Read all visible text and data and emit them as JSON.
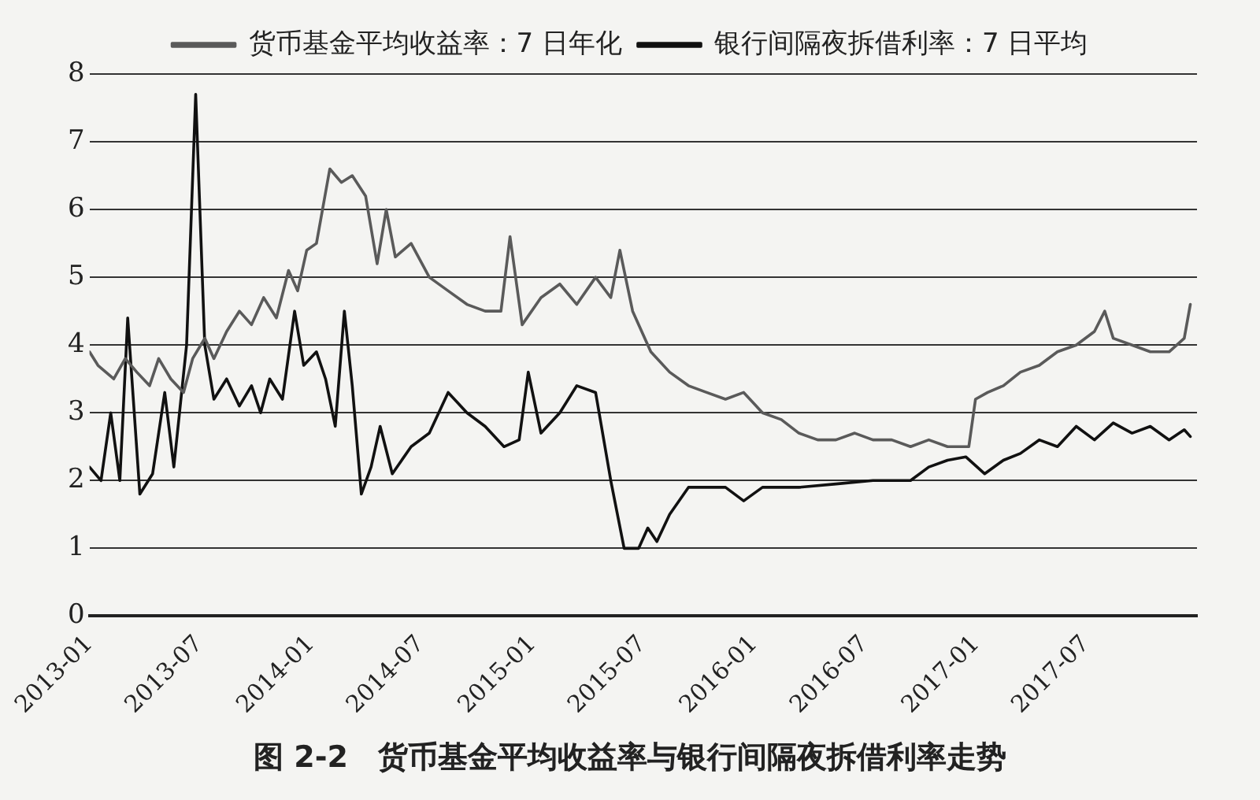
{
  "chart_data": {
    "type": "line",
    "title": "图 2-2　货币基金平均收益率与银行间隔夜拆借利率走势",
    "xlim": [
      "2013-01-01",
      "2017-12-31"
    ],
    "xticks": [
      "2013-01",
      "2013-07",
      "2014-01",
      "2014-07",
      "2015-01",
      "2015-07",
      "2016-01",
      "2016-07",
      "2017-01",
      "2017-07"
    ],
    "ylim": [
      0,
      8
    ],
    "yticks": [
      0,
      1,
      2,
      3,
      4,
      5,
      6,
      7,
      8
    ],
    "grid": "y",
    "legend": "top",
    "marker": "none",
    "line_style": "solid",
    "series": [
      {
        "name": "货币基金平均收益率：7 日年化",
        "color": "#5a5a5a",
        "x": [
          "2013-01-01",
          "2013-01-15",
          "2013-02-10",
          "2013-03-01",
          "2013-03-20",
          "2013-04-10",
          "2013-04-25",
          "2013-05-15",
          "2013-06-05",
          "2013-06-20",
          "2013-07-10",
          "2013-07-25",
          "2013-08-15",
          "2013-09-05",
          "2013-09-25",
          "2013-10-15",
          "2013-11-05",
          "2013-11-25",
          "2013-12-10",
          "2013-12-25",
          "2014-01-10",
          "2014-01-20",
          "2014-02-01",
          "2014-02-20",
          "2014-03-10",
          "2014-04-01",
          "2014-04-20",
          "2014-05-05",
          "2014-05-20",
          "2014-06-15",
          "2014-07-15",
          "2014-08-15",
          "2014-09-15",
          "2014-10-15",
          "2014-11-10",
          "2014-11-25",
          "2014-12-15",
          "2015-01-15",
          "2015-02-15",
          "2015-03-15",
          "2015-04-15",
          "2015-05-10",
          "2015-05-25",
          "2015-06-15",
          "2015-07-15",
          "2015-08-15",
          "2015-09-15",
          "2015-10-15",
          "2015-11-15",
          "2015-12-15",
          "2016-01-15",
          "2016-02-15",
          "2016-03-15",
          "2016-04-15",
          "2016-05-15",
          "2016-06-15",
          "2016-07-15",
          "2016-08-15",
          "2016-09-15",
          "2016-10-15",
          "2016-11-15",
          "2016-12-20",
          "2016-12-31",
          "2017-01-20",
          "2017-02-15",
          "2017-03-15",
          "2017-04-15",
          "2017-05-15",
          "2017-06-15",
          "2017-07-15",
          "2017-08-01",
          "2017-08-15",
          "2017-09-15",
          "2017-10-15",
          "2017-11-15",
          "2017-12-10",
          "2017-12-20"
        ],
        "values": [
          3.9,
          3.7,
          3.5,
          3.8,
          3.6,
          3.4,
          3.8,
          3.5,
          3.3,
          3.8,
          4.1,
          3.8,
          4.2,
          4.5,
          4.3,
          4.7,
          4.4,
          5.1,
          4.8,
          5.4,
          5.5,
          6.0,
          6.6,
          6.4,
          6.5,
          6.2,
          5.2,
          6.0,
          5.3,
          5.5,
          5.0,
          4.8,
          4.6,
          4.5,
          4.5,
          5.6,
          4.3,
          4.7,
          4.9,
          4.6,
          5.0,
          4.7,
          5.4,
          4.5,
          3.9,
          3.6,
          3.4,
          3.3,
          3.2,
          3.3,
          3.0,
          2.9,
          2.7,
          2.6,
          2.6,
          2.7,
          2.6,
          2.6,
          2.5,
          2.6,
          2.5,
          2.5,
          3.2,
          3.3,
          3.4,
          3.6,
          3.7,
          3.9,
          4.0,
          4.2,
          4.5,
          4.1,
          4.0,
          3.9,
          3.9,
          4.1,
          4.6
        ]
      },
      {
        "name": "银行间隔夜拆借利率：7 日平均",
        "color": "#111111",
        "x": [
          "2013-01-01",
          "2013-01-20",
          "2013-02-05",
          "2013-02-20",
          "2013-03-05",
          "2013-03-25",
          "2013-04-15",
          "2013-05-05",
          "2013-05-20",
          "2013-06-10",
          "2013-06-25",
          "2013-07-10",
          "2013-07-25",
          "2013-08-15",
          "2013-09-05",
          "2013-09-25",
          "2013-10-10",
          "2013-10-25",
          "2013-11-15",
          "2013-12-05",
          "2013-12-20",
          "2014-01-10",
          "2014-01-25",
          "2014-02-10",
          "2014-02-25",
          "2014-03-10",
          "2014-03-25",
          "2014-04-10",
          "2014-04-25",
          "2014-05-15",
          "2014-06-15",
          "2014-07-15",
          "2014-08-15",
          "2014-09-15",
          "2014-10-15",
          "2014-11-15",
          "2014-12-10",
          "2014-12-25",
          "2015-01-15",
          "2015-02-15",
          "2015-03-15",
          "2015-04-15",
          "2015-05-10",
          "2015-06-01",
          "2015-06-25",
          "2015-07-10",
          "2015-07-25",
          "2015-08-15",
          "2015-09-15",
          "2015-10-15",
          "2015-11-15",
          "2015-12-15",
          "2016-01-15",
          "2016-03-15",
          "2016-05-15",
          "2016-07-15",
          "2016-09-15",
          "2016-10-15",
          "2016-11-15",
          "2016-12-15",
          "2017-01-15",
          "2017-02-15",
          "2017-03-15",
          "2017-04-15",
          "2017-05-15",
          "2017-06-15",
          "2017-07-15",
          "2017-08-15",
          "2017-09-15",
          "2017-10-15",
          "2017-11-15",
          "2017-12-10",
          "2017-12-20"
        ],
        "values": [
          2.2,
          2.0,
          3.0,
          2.0,
          4.4,
          1.8,
          2.1,
          3.3,
          2.2,
          4.0,
          7.7,
          4.0,
          3.2,
          3.5,
          3.1,
          3.4,
          3.0,
          3.5,
          3.2,
          4.5,
          3.7,
          3.9,
          3.5,
          2.8,
          4.5,
          3.4,
          1.8,
          2.2,
          2.8,
          2.1,
          2.5,
          2.7,
          3.3,
          3.0,
          2.8,
          2.5,
          2.6,
          3.6,
          2.7,
          3.0,
          3.4,
          3.3,
          2.0,
          1.0,
          1.0,
          1.3,
          1.1,
          1.5,
          1.9,
          1.9,
          1.9,
          1.7,
          1.9,
          1.9,
          1.95,
          2.0,
          2.0,
          2.2,
          2.3,
          2.35,
          2.1,
          2.3,
          2.4,
          2.6,
          2.5,
          2.8,
          2.6,
          2.85,
          2.7,
          2.8,
          2.6,
          2.75,
          2.65
        ]
      }
    ]
  }
}
